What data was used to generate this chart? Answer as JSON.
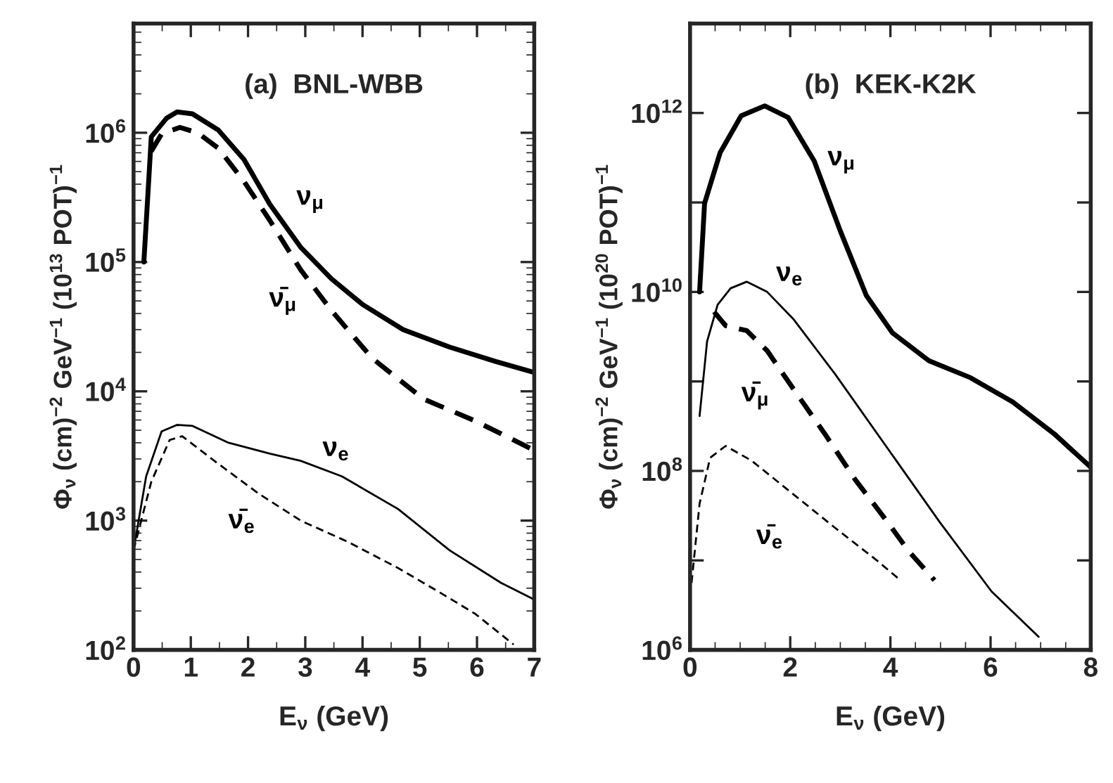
{
  "chart_data": [
    {
      "type": "line",
      "title": "(a)  BNL-WBB",
      "xlabel": "E$_{ν}$ (GeV)",
      "ylabel": "Φ$_{ν}$ (cm)$^{−2}$ GeV$^{−1}$ (10$^{13}$ POT)$^{−1}$",
      "log": "y",
      "legend": false,
      "marker": "none",
      "xlim": [
        0,
        7
      ],
      "xticks": [
        0,
        1,
        2,
        3,
        4,
        5,
        6,
        7
      ],
      "ylim": [
        100,
        7000000
      ],
      "yticks": [
        {
          "value": 100,
          "label": "10$^{2}$"
        },
        {
          "value": 1000,
          "label": "10$^{3}$"
        },
        {
          "value": 10000,
          "label": "10$^{4}$"
        },
        {
          "value": 100000,
          "label": "10$^{5}$"
        },
        {
          "value": 1000000,
          "label": "10$^{6}$"
        }
      ],
      "series": [
        {
          "name": "ν$_{μ}$",
          "color": "#000000",
          "line_style": "solid",
          "x": [
            0.18,
            0.31,
            0.58,
            0.76,
            1.03,
            1.48,
            1.93,
            2.38,
            2.92,
            3.46,
            4.0,
            4.71,
            5.52,
            6.33,
            7.0
          ],
          "values": [
            100000,
            930000,
            1300000,
            1450000,
            1400000,
            1050000,
            620000,
            280000,
            130000,
            74000,
            47000,
            30000,
            22000,
            17000,
            14000
          ]
        },
        {
          "name": "ν̄$_{μ}$",
          "color": "#000000",
          "line_style": "dashed",
          "x": [
            0.31,
            0.49,
            0.81,
            1.12,
            1.48,
            1.93,
            2.38,
            2.92,
            3.46,
            4.17,
            5.07,
            5.97,
            7.0
          ],
          "values": [
            720000,
            980000,
            1100000,
            1000000,
            760000,
            420000,
            210000,
            87000,
            42000,
            18000,
            8700,
            5900,
            3500
          ]
        },
        {
          "name": "ν$_{e}$",
          "color": "#000000",
          "line_style": "solid",
          "x": [
            0.0,
            0.22,
            0.49,
            0.76,
            1.03,
            1.66,
            2.38,
            2.92,
            3.64,
            4.62,
            5.52,
            6.42,
            7.0
          ],
          "values": [
            590,
            2200,
            4900,
            5500,
            5400,
            4000,
            3300,
            2900,
            2200,
            1230,
            590,
            330,
            245
          ]
        },
        {
          "name": "ν̄$_{e}$",
          "color": "#000000",
          "line_style": "dashed",
          "x": [
            0.0,
            0.31,
            0.63,
            0.85,
            1.48,
            2.2,
            2.92,
            3.73,
            4.62,
            5.34,
            5.97,
            6.64
          ],
          "values": [
            590,
            2000,
            4200,
            4500,
            2750,
            1600,
            1000,
            690,
            430,
            280,
            190,
            110
          ]
        }
      ]
    },
    {
      "type": "line",
      "title": "(b)  KEK-K2K",
      "xlabel": "E$_{ν}$ (GeV)",
      "ylabel": "Φ$_{ν}$ (cm)$^{−2}$ GeV$^{−1}$ (10$^{20}$ POT)$^{−1}$",
      "log": "y",
      "legend": false,
      "marker": "none",
      "xlim": [
        0,
        8
      ],
      "xticks": [
        0,
        2,
        4,
        6,
        8
      ],
      "ylim": [
        1000000,
        10000000000000
      ],
      "yticks": [
        {
          "value": 1000000,
          "label": "10$^{6}$"
        },
        {
          "value": 10000000,
          "label": null
        },
        {
          "value": 100000000,
          "label": "10$^{8}$"
        },
        {
          "value": 1000000000,
          "label": null
        },
        {
          "value": 10000000000,
          "label": "10$^{10}$"
        },
        {
          "value": 100000000000,
          "label": null
        },
        {
          "value": 1000000000000,
          "label": "10$^{12}$"
        }
      ],
      "series": [
        {
          "name": "ν$_{μ}$",
          "color": "#000000",
          "line_style": "solid",
          "x": [
            0.19,
            0.29,
            0.6,
            1.02,
            1.49,
            1.96,
            2.48,
            3.0,
            3.52,
            4.04,
            4.77,
            5.6,
            6.44,
            7.27,
            8.0
          ],
          "values": [
            10000000000,
            98000000000,
            360000000000,
            930000000000,
            1200000000000,
            890000000000,
            290000000000,
            48000000000,
            9100000000,
            3500000000,
            1700000000,
            1100000000,
            590000000,
            260000000,
            110000000
          ]
        },
        {
          "name": "ν$_{e}$",
          "color": "#000000",
          "line_style": "solid",
          "x": [
            0.19,
            0.34,
            0.55,
            0.81,
            1.13,
            1.54,
            2.06,
            2.9,
            3.94,
            4.98,
            6.02,
            6.96
          ],
          "values": [
            410000000,
            2800000000,
            7200000000,
            11000000000,
            13000000000,
            10000000000,
            5000000000,
            1200000000,
            180000000,
            27000000,
            4500000,
            1400000
          ]
        },
        {
          "name": "ν̄$_{μ}$",
          "color": "#000000",
          "line_style": "dashed",
          "x": [
            0.48,
            0.71,
            1.13,
            1.54,
            2.06,
            2.69,
            3.31,
            3.94,
            4.35,
            4.88
          ],
          "values": [
            6000000000,
            4200000000,
            3700000000,
            2200000000,
            830000000,
            260000000,
            78000000,
            27000000,
            13000000,
            6000000
          ]
        },
        {
          "name": "ν̄$_{e}$",
          "color": "#000000",
          "line_style": "dashed",
          "x": [
            0.03,
            0.19,
            0.4,
            0.71,
            1.23,
            2.06,
            2.9,
            3.73,
            4.2
          ],
          "values": [
            5600000,
            43000000,
            140000000,
            190000000,
            130000000,
            55000000,
            23000000,
            10000000,
            6000000
          ]
        }
      ]
    }
  ]
}
